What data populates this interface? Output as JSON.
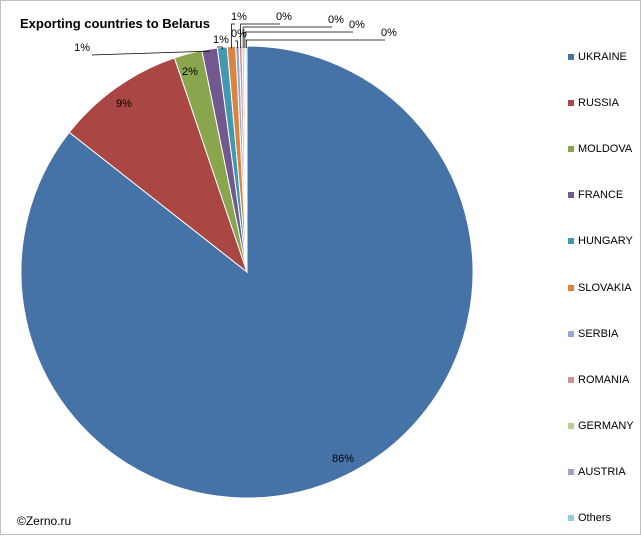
{
  "chart_data": {
    "type": "pie",
    "title": "Exporting countries to Belarus",
    "legend_position": "right",
    "slices": [
      {
        "label": "UKRAINE",
        "value": 85.6,
        "data_label": "86%",
        "color": "#4572a7"
      },
      {
        "label": "RUSSIA",
        "value": 9.2,
        "data_label": "9%",
        "color": "#aa4643"
      },
      {
        "label": "MOLDOVA",
        "value": 2.0,
        "data_label": "2%",
        "color": "#89a54e"
      },
      {
        "label": "FRANCE",
        "value": 1.1,
        "data_label": "1%",
        "color": "#71588f"
      },
      {
        "label": "HUNGARY",
        "value": 0.7,
        "data_label": "1%",
        "color": "#4198af"
      },
      {
        "label": "SLOVAKIA",
        "value": 0.6,
        "data_label": "1%",
        "color": "#db843d"
      },
      {
        "label": "SERBIA",
        "value": 0.25,
        "data_label": "0%",
        "color": "#93a9cf"
      },
      {
        "label": "ROMANIA",
        "value": 0.2,
        "data_label": "0%",
        "color": "#d19392"
      },
      {
        "label": "GERMANY",
        "value": 0.15,
        "data_label": "0%",
        "color": "#b9cd96"
      },
      {
        "label": "AUSTRIA",
        "value": 0.1,
        "data_label": "0%",
        "color": "#a99bbd"
      },
      {
        "label": "Others",
        "value": 0.1,
        "data_label": "0%",
        "color": "#92cddc"
      }
    ]
  },
  "footer": {
    "copyright": "©Zerno.ru"
  }
}
